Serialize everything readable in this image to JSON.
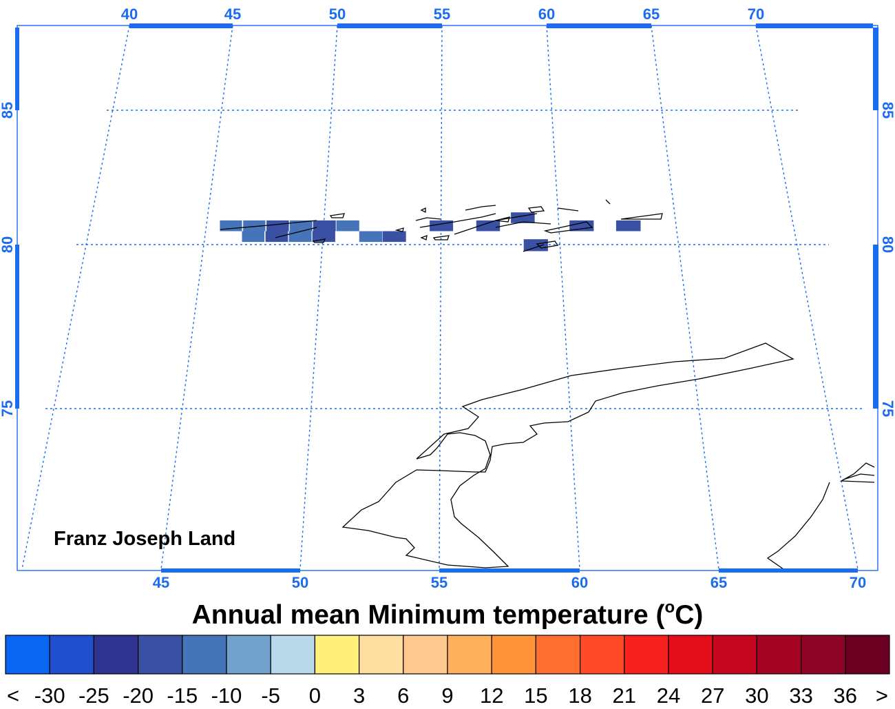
{
  "map": {
    "region_label": "Franz Joseph Land",
    "top_lon_labels": [
      "40",
      "45",
      "50",
      "55",
      "60",
      "65",
      "70"
    ],
    "bottom_lon_labels": [
      "45",
      "50",
      "55",
      "60",
      "65",
      "70"
    ],
    "lat_labels": [
      "85",
      "80",
      "75"
    ],
    "frame_color": "#1a6cf0",
    "grid_color": "#1a6cf0",
    "coastline_color": "#000000",
    "data_cells": [
      {
        "lon": 46.0,
        "lat": 80.7,
        "value": -15
      },
      {
        "lon": 47.0,
        "lat": 80.7,
        "value": -15
      },
      {
        "lon": 48.0,
        "lat": 80.7,
        "value": -20
      },
      {
        "lon": 49.0,
        "lat": 80.7,
        "value": -15
      },
      {
        "lon": 50.0,
        "lat": 80.7,
        "value": -20
      },
      {
        "lon": 51.0,
        "lat": 80.7,
        "value": -15
      },
      {
        "lon": 47.0,
        "lat": 80.3,
        "value": -15
      },
      {
        "lon": 48.0,
        "lat": 80.3,
        "value": -20
      },
      {
        "lon": 49.0,
        "lat": 80.3,
        "value": -15
      },
      {
        "lon": 50.0,
        "lat": 80.3,
        "value": -20
      },
      {
        "lon": 52.0,
        "lat": 80.3,
        "value": -15
      },
      {
        "lon": 53.0,
        "lat": 80.3,
        "value": -20
      },
      {
        "lon": 55.0,
        "lat": 80.7,
        "value": -20
      },
      {
        "lon": 57.0,
        "lat": 80.7,
        "value": -20
      },
      {
        "lon": 58.5,
        "lat": 81.0,
        "value": -20
      },
      {
        "lon": 61.0,
        "lat": 80.7,
        "value": -20
      },
      {
        "lon": 63.0,
        "lat": 80.7,
        "value": -20
      },
      {
        "lon": 59.0,
        "lat": 80.0,
        "value": -20
      }
    ]
  },
  "colorbar": {
    "title": "Annual mean Minimum temperature (",
    "title_sup": "o",
    "title_end": "C)",
    "colors": [
      "#0a66f2",
      "#1f4fcc",
      "#2e3390",
      "#3a51a3",
      "#4574b8",
      "#72a3cf",
      "#b9d8ea",
      "#fff17a",
      "#ffdea0",
      "#ffc88e",
      "#ffb05c",
      "#ff9538",
      "#ff6e2e",
      "#ff4a28",
      "#f7211e",
      "#e40f1a",
      "#c4061e",
      "#a40322",
      "#8e0426",
      "#6b0022"
    ],
    "labels": [
      "<",
      "-30",
      "-25",
      "-20",
      "-15",
      "-10",
      "-5",
      "0",
      "3",
      "6",
      "9",
      "12",
      "15",
      "18",
      "21",
      "24",
      "27",
      "30",
      "33",
      "36",
      ">"
    ],
    "bounds": [
      -30,
      -25,
      -20,
      -15,
      -10,
      -5,
      0,
      3,
      6,
      9,
      12,
      15,
      18,
      21,
      24,
      27,
      30,
      33,
      36
    ]
  }
}
